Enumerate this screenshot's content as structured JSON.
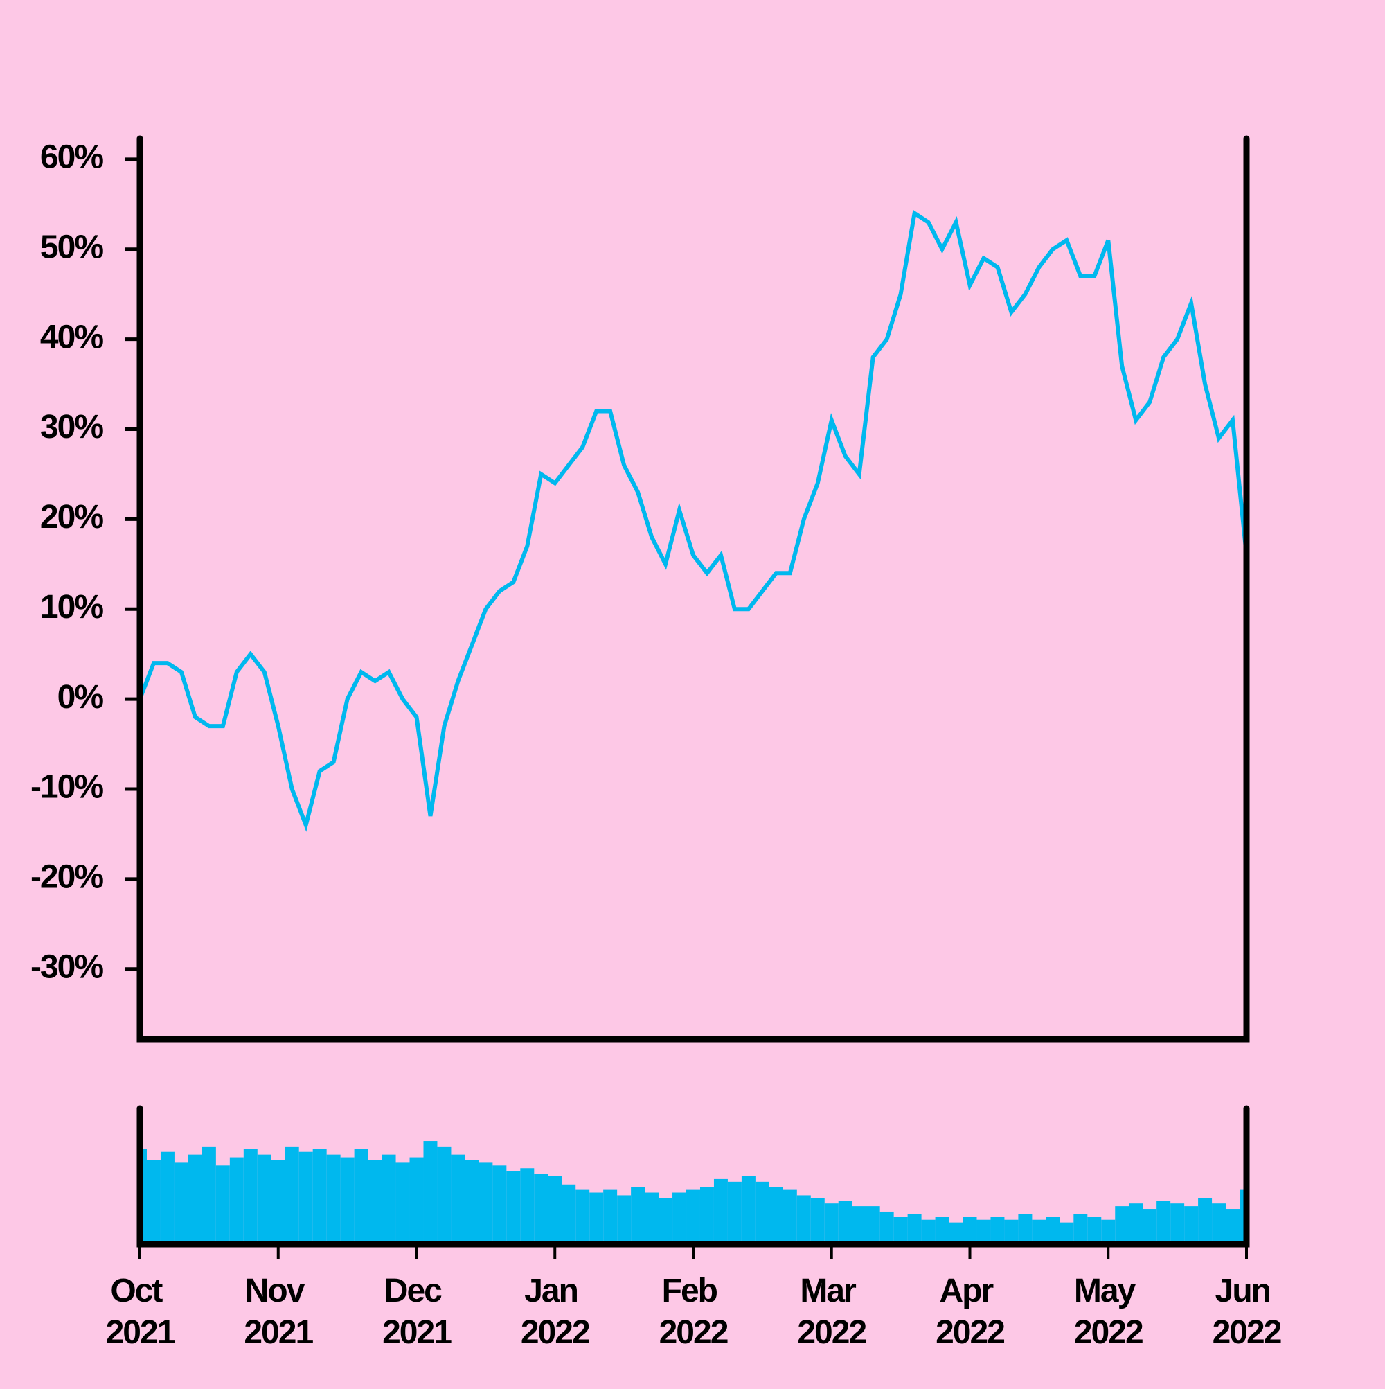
{
  "chart_data": [
    {
      "type": "line",
      "color": "#00b8ee",
      "x": [
        0,
        0.1,
        0.2,
        0.3,
        0.4,
        0.5,
        0.6,
        0.7,
        0.8,
        0.9,
        1,
        1.1,
        1.2,
        1.3,
        1.4,
        1.5,
        1.6,
        1.7,
        1.8,
        1.9,
        2,
        2.1,
        2.2,
        2.3,
        2.4,
        2.5,
        2.6,
        2.7,
        2.8,
        2.9,
        3,
        3.1,
        3.2,
        3.3,
        3.4,
        3.5,
        3.6,
        3.7,
        3.8,
        3.9,
        4,
        4.1,
        4.2,
        4.3,
        4.4,
        4.5,
        4.6,
        4.7,
        4.8,
        4.9,
        5,
        5.1,
        5.2,
        5.3,
        5.4,
        5.5,
        5.6,
        5.7,
        5.8,
        5.9,
        6,
        6.1,
        6.2,
        6.3,
        6.4,
        6.5,
        6.6,
        6.7,
        6.8,
        6.9,
        7,
        7.1,
        7.2,
        7.3,
        7.4,
        7.5,
        7.6,
        7.7,
        7.8,
        7.9,
        8
      ],
      "values": [
        0,
        4,
        4,
        3,
        -2,
        -3,
        -3,
        3,
        5,
        3,
        -3,
        -10,
        -14,
        -8,
        -7,
        0,
        3,
        2,
        3,
        0,
        -2,
        -13,
        -3,
        2,
        6,
        10,
        12,
        13,
        17,
        25,
        24,
        26,
        28,
        32,
        32,
        26,
        23,
        18,
        15,
        21,
        16,
        14,
        16,
        10,
        10,
        12,
        14,
        14,
        20,
        24,
        31,
        27,
        25,
        38,
        40,
        45,
        54,
        53,
        50,
        53,
        46,
        49,
        48,
        43,
        45,
        48,
        50,
        51,
        47,
        47,
        51,
        37,
        31,
        33,
        38,
        40,
        44,
        35,
        29,
        31,
        16
      ],
      "xlim": [
        0,
        8
      ],
      "ylim": [
        -37.8,
        62.3
      ],
      "yticks": [
        {
          "value": 60,
          "label": "60%"
        },
        {
          "value": 50,
          "label": "50%"
        },
        {
          "value": 40,
          "label": "40%"
        },
        {
          "value": 30,
          "label": "30%"
        },
        {
          "value": 20,
          "label": "20%"
        },
        {
          "value": 10,
          "label": "10%"
        },
        {
          "value": 0,
          "label": "0%"
        },
        {
          "value": -10,
          "label": "-10%"
        },
        {
          "value": -20,
          "label": "-20%"
        },
        {
          "value": -30,
          "label": "-30%"
        }
      ]
    },
    {
      "type": "bar",
      "color": "#00b8ee",
      "x": [
        0,
        0.1,
        0.2,
        0.3,
        0.4,
        0.5,
        0.6,
        0.7,
        0.8,
        0.9,
        1,
        1.1,
        1.2,
        1.3,
        1.4,
        1.5,
        1.6,
        1.7,
        1.8,
        1.9,
        2,
        2.1,
        2.2,
        2.3,
        2.4,
        2.5,
        2.6,
        2.7,
        2.8,
        2.9,
        3,
        3.1,
        3.2,
        3.3,
        3.4,
        3.5,
        3.6,
        3.7,
        3.8,
        3.9,
        4,
        4.1,
        4.2,
        4.3,
        4.4,
        4.5,
        4.6,
        4.7,
        4.8,
        4.9,
        5,
        5.1,
        5.2,
        5.3,
        5.4,
        5.5,
        5.6,
        5.7,
        5.8,
        5.9,
        6,
        6.1,
        6.2,
        6.3,
        6.4,
        6.5,
        6.6,
        6.7,
        6.8,
        6.9,
        7,
        7.1,
        7.2,
        7.3,
        7.4,
        7.5,
        7.6,
        7.7,
        7.8,
        7.9,
        8
      ],
      "values": [
        70,
        62,
        68,
        60,
        66,
        72,
        58,
        64,
        70,
        66,
        62,
        72,
        68,
        70,
        66,
        64,
        70,
        62,
        66,
        60,
        64,
        76,
        72,
        66,
        62,
        60,
        58,
        54,
        56,
        52,
        50,
        44,
        40,
        38,
        40,
        36,
        42,
        38,
        34,
        38,
        40,
        42,
        48,
        46,
        50,
        46,
        42,
        40,
        36,
        34,
        30,
        32,
        28,
        28,
        24,
        20,
        22,
        18,
        20,
        16,
        20,
        18,
        20,
        18,
        22,
        18,
        20,
        16,
        22,
        20,
        18,
        28,
        30,
        26,
        32,
        30,
        28,
        34,
        30,
        26,
        40
      ],
      "xlim": [
        0,
        8
      ],
      "ylim": [
        0,
        100
      ],
      "xticks": [
        {
          "value": 0,
          "label": "Oct 2021"
        },
        {
          "value": 1,
          "label": "Nov 2021"
        },
        {
          "value": 2,
          "label": "Dec 2021"
        },
        {
          "value": 3,
          "label": "Jan 2022"
        },
        {
          "value": 4,
          "label": "Feb 2022"
        },
        {
          "value": 5,
          "label": "Mar 2022"
        },
        {
          "value": 6,
          "label": "Apr 2022"
        },
        {
          "value": 7,
          "label": "May 2022"
        },
        {
          "value": 8,
          "label": "Jun 2022"
        }
      ]
    }
  ]
}
